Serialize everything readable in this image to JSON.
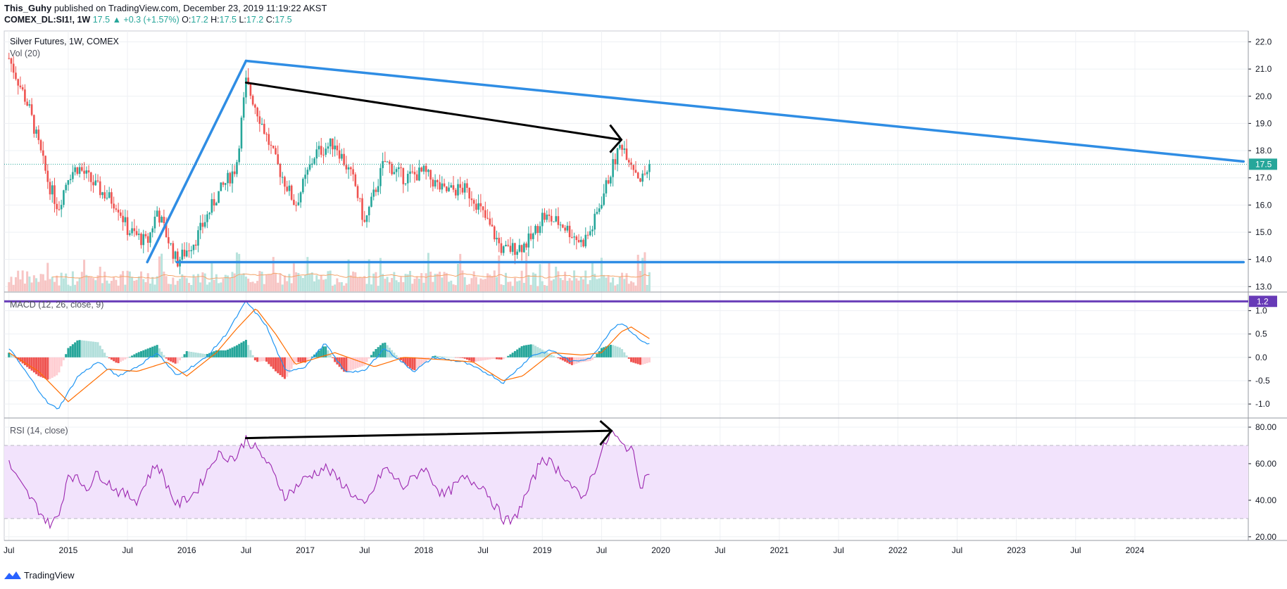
{
  "header": {
    "author": "This_Guhy",
    "published_text": "published on TradingView.com, December 23, 2019 11:19:22 AKST",
    "symbol": "COMEX_DL:SI1!, 1W",
    "last": "17.5",
    "change": "▲ +0.3 (+1.57%)",
    "o_label": "O:",
    "o": "17.2",
    "h_label": "H:",
    "h": "17.5",
    "l_label": "L:",
    "l": "17.2",
    "c_label": "C:",
    "c": "17.5"
  },
  "footer": {
    "brand": "TradingView",
    "logo_icon": "tradingview-logo-icon"
  },
  "colors": {
    "up": "#26a69a",
    "down": "#ef5350",
    "trend_blue": "#2f8de4",
    "macd_line": "#2196f3",
    "signal_line": "#ff6d00",
    "rsi_line": "#9c27b0",
    "rsi_band": "#f2e3fc",
    "macd_level": "#673ab7",
    "price_badge": "#26a69a"
  },
  "chart_data": [
    {
      "type": "candlestick",
      "title": "Silver Futures, 1W, COMEX",
      "indicator_label": "Vol (20)",
      "price_scale": [
        "22.0",
        "21.0",
        "20.0",
        "19.0",
        "18.0",
        "17.0",
        "16.0",
        "15.0",
        "14.0",
        "13.0"
      ],
      "ylim": [
        12.8,
        22.4
      ],
      "current_price": 17.5,
      "current_price_label": "17.5",
      "price_path_keypoints": [
        [
          "2014-07",
          21.4
        ],
        [
          "2014-09",
          19.6
        ],
        [
          "2014-11",
          16.8
        ],
        [
          "2014-12",
          15.9
        ],
        [
          "2015-01",
          17.1
        ],
        [
          "2015-02",
          17.4
        ],
        [
          "2015-04",
          16.6
        ],
        [
          "2015-06",
          16.0
        ],
        [
          "2015-07",
          15.1
        ],
        [
          "2015-09",
          14.6
        ],
        [
          "2015-10",
          15.8
        ],
        [
          "2015-12",
          13.9
        ],
        [
          "2016-02",
          14.8
        ],
        [
          "2016-04",
          16.3
        ],
        [
          "2016-06",
          17.4
        ],
        [
          "2016-07",
          20.5
        ],
        [
          "2016-08",
          19.6
        ],
        [
          "2016-10",
          17.6
        ],
        [
          "2016-12",
          16.0
        ],
        [
          "2017-02",
          17.9
        ],
        [
          "2017-04",
          18.3
        ],
        [
          "2017-06",
          16.8
        ],
        [
          "2017-07",
          15.3
        ],
        [
          "2017-09",
          17.6
        ],
        [
          "2017-11",
          17.0
        ],
        [
          "2018-01",
          17.2
        ],
        [
          "2018-03",
          16.5
        ],
        [
          "2018-05",
          16.6
        ],
        [
          "2018-06",
          16.3
        ],
        [
          "2018-08",
          15.0
        ],
        [
          "2018-09",
          14.3
        ],
        [
          "2018-11",
          14.5
        ],
        [
          "2018-12",
          14.8
        ],
        [
          "2019-01",
          15.6
        ],
        [
          "2019-03",
          15.3
        ],
        [
          "2019-05",
          14.6
        ],
        [
          "2019-06",
          15.1
        ],
        [
          "2019-07",
          16.2
        ],
        [
          "2019-08",
          17.3
        ],
        [
          "2019-09",
          18.3
        ],
        [
          "2019-10",
          17.6
        ],
        [
          "2019-11",
          16.9
        ],
        [
          "2019-12",
          17.5
        ]
      ],
      "trendlines": [
        {
          "name": "blue-rising-line",
          "points": [
            [
              "2015-09",
              13.9
            ],
            [
              "2016-07",
              21.3
            ]
          ]
        },
        {
          "name": "blue-falling-line",
          "points": [
            [
              "2016-07",
              21.3
            ],
            [
              "2024-12",
              17.6
            ]
          ]
        },
        {
          "name": "blue-support-line",
          "points": [
            [
              "2015-12",
              13.9
            ],
            [
              "2024-12",
              13.9
            ]
          ]
        },
        {
          "name": "black-arrow-price",
          "points": [
            [
              "2016-07",
              20.5
            ],
            [
              "2019-09",
              18.4
            ]
          ]
        }
      ]
    },
    {
      "type": "line",
      "title": "MACD (12, 26, close, 9)",
      "scale": [
        "1.0",
        "0.5",
        "0.0",
        "-0.5",
        "-1.0"
      ],
      "ylim": [
        -1.3,
        1.4
      ],
      "level": 1.2,
      "level_label": "1.2",
      "macd_keypoints": [
        [
          "2014-07",
          0.2
        ],
        [
          "2014-09",
          -0.4
        ],
        [
          "2014-11",
          -1.0
        ],
        [
          "2014-12",
          -1.1
        ],
        [
          "2015-02",
          -0.4
        ],
        [
          "2015-04",
          -0.1
        ],
        [
          "2015-06",
          -0.4
        ],
        [
          "2015-08",
          -0.2
        ],
        [
          "2015-10",
          0.1
        ],
        [
          "2015-12",
          -0.4
        ],
        [
          "2016-03",
          0.0
        ],
        [
          "2016-05",
          0.5
        ],
        [
          "2016-07",
          1.2
        ],
        [
          "2016-09",
          0.7
        ],
        [
          "2016-11",
          -0.3
        ],
        [
          "2017-01",
          -0.2
        ],
        [
          "2017-03",
          0.3
        ],
        [
          "2017-05",
          -0.3
        ],
        [
          "2017-07",
          -0.3
        ],
        [
          "2017-09",
          0.2
        ],
        [
          "2017-12",
          -0.3
        ],
        [
          "2018-02",
          0.0
        ],
        [
          "2018-05",
          -0.1
        ],
        [
          "2018-08",
          -0.4
        ],
        [
          "2018-09",
          -0.55
        ],
        [
          "2018-12",
          0.05
        ],
        [
          "2019-02",
          0.15
        ],
        [
          "2019-04",
          -0.1
        ],
        [
          "2019-06",
          0.0
        ],
        [
          "2019-08",
          0.6
        ],
        [
          "2019-09",
          0.75
        ],
        [
          "2019-11",
          0.35
        ],
        [
          "2019-12",
          0.28
        ]
      ],
      "signal_keypoints": [
        [
          "2014-07",
          0.1
        ],
        [
          "2014-10",
          -0.3
        ],
        [
          "2015-01",
          -0.95
        ],
        [
          "2015-03",
          -0.6
        ],
        [
          "2015-05",
          -0.25
        ],
        [
          "2015-08",
          -0.3
        ],
        [
          "2015-11",
          -0.1
        ],
        [
          "2016-01",
          -0.4
        ],
        [
          "2016-04",
          0.1
        ],
        [
          "2016-06",
          0.6
        ],
        [
          "2016-08",
          1.05
        ],
        [
          "2016-10",
          0.5
        ],
        [
          "2016-12",
          -0.15
        ],
        [
          "2017-04",
          0.1
        ],
        [
          "2017-08",
          -0.2
        ],
        [
          "2017-11",
          0.0
        ],
        [
          "2018-03",
          -0.05
        ],
        [
          "2018-06",
          -0.1
        ],
        [
          "2018-09",
          -0.5
        ],
        [
          "2018-11",
          -0.4
        ],
        [
          "2019-02",
          0.1
        ],
        [
          "2019-05",
          0.05
        ],
        [
          "2019-07",
          0.1
        ],
        [
          "2019-09",
          0.55
        ],
        [
          "2019-10",
          0.65
        ],
        [
          "2019-12",
          0.38
        ]
      ]
    },
    {
      "type": "line",
      "title": "RSI (14, close)",
      "scale": [
        "80.00",
        "60.00",
        "40.00",
        "20.00"
      ],
      "ylim": [
        18,
        85
      ],
      "band": [
        30,
        70
      ],
      "rsi_keypoints": [
        [
          "2014-07",
          60
        ],
        [
          "2014-08",
          50
        ],
        [
          "2014-10",
          35
        ],
        [
          "2014-11",
          27
        ],
        [
          "2014-12",
          30
        ],
        [
          "2015-01",
          55
        ],
        [
          "2015-03",
          47
        ],
        [
          "2015-04",
          55
        ],
        [
          "2015-06",
          45
        ],
        [
          "2015-08",
          40
        ],
        [
          "2015-09",
          52
        ],
        [
          "2015-10",
          60
        ],
        [
          "2015-12",
          37
        ],
        [
          "2016-02",
          45
        ],
        [
          "2016-04",
          65
        ],
        [
          "2016-06",
          63
        ],
        [
          "2016-07",
          74
        ],
        [
          "2016-09",
          62
        ],
        [
          "2016-11",
          42
        ],
        [
          "2017-01",
          52
        ],
        [
          "2017-03",
          58
        ],
        [
          "2017-05",
          48
        ],
        [
          "2017-07",
          36
        ],
        [
          "2017-09",
          58
        ],
        [
          "2017-11",
          47
        ],
        [
          "2018-01",
          58
        ],
        [
          "2018-03",
          42
        ],
        [
          "2018-05",
          52
        ],
        [
          "2018-07",
          48
        ],
        [
          "2018-09",
          30
        ],
        [
          "2018-10",
          28
        ],
        [
          "2018-12",
          50
        ],
        [
          "2019-01",
          64
        ],
        [
          "2019-03",
          55
        ],
        [
          "2019-05",
          40
        ],
        [
          "2019-07",
          66
        ],
        [
          "2019-08",
          78
        ],
        [
          "2019-09",
          70
        ],
        [
          "2019-10",
          69
        ],
        [
          "2019-11",
          48
        ],
        [
          "2019-12",
          58
        ]
      ],
      "arrow": {
        "points": [
          [
            "2016-07",
            74
          ],
          [
            "2019-08",
            78
          ]
        ]
      }
    }
  ],
  "x_axis": {
    "ticks": [
      {
        "date": "2014-07",
        "label": "Jul"
      },
      {
        "date": "2015-01",
        "label": "2015"
      },
      {
        "date": "2015-07",
        "label": "Jul"
      },
      {
        "date": "2016-01",
        "label": "2016"
      },
      {
        "date": "2016-07",
        "label": "Jul"
      },
      {
        "date": "2017-01",
        "label": "2017"
      },
      {
        "date": "2017-07",
        "label": "Jul"
      },
      {
        "date": "2018-01",
        "label": "2018"
      },
      {
        "date": "2018-07",
        "label": "Jul"
      },
      {
        "date": "2019-01",
        "label": "2019"
      },
      {
        "date": "2019-07",
        "label": "Jul"
      },
      {
        "date": "2020-01",
        "label": "2020"
      },
      {
        "date": "2020-07",
        "label": "Jul"
      },
      {
        "date": "2021-01",
        "label": "2021"
      },
      {
        "date": "2021-07",
        "label": "Jul"
      },
      {
        "date": "2022-01",
        "label": "2022"
      },
      {
        "date": "2022-07",
        "label": "Jul"
      },
      {
        "date": "2023-01",
        "label": "2023"
      },
      {
        "date": "2023-07",
        "label": "Jul"
      },
      {
        "date": "2024-01",
        "label": "2024"
      }
    ],
    "range": [
      "2014-07",
      "2024-12"
    ]
  }
}
